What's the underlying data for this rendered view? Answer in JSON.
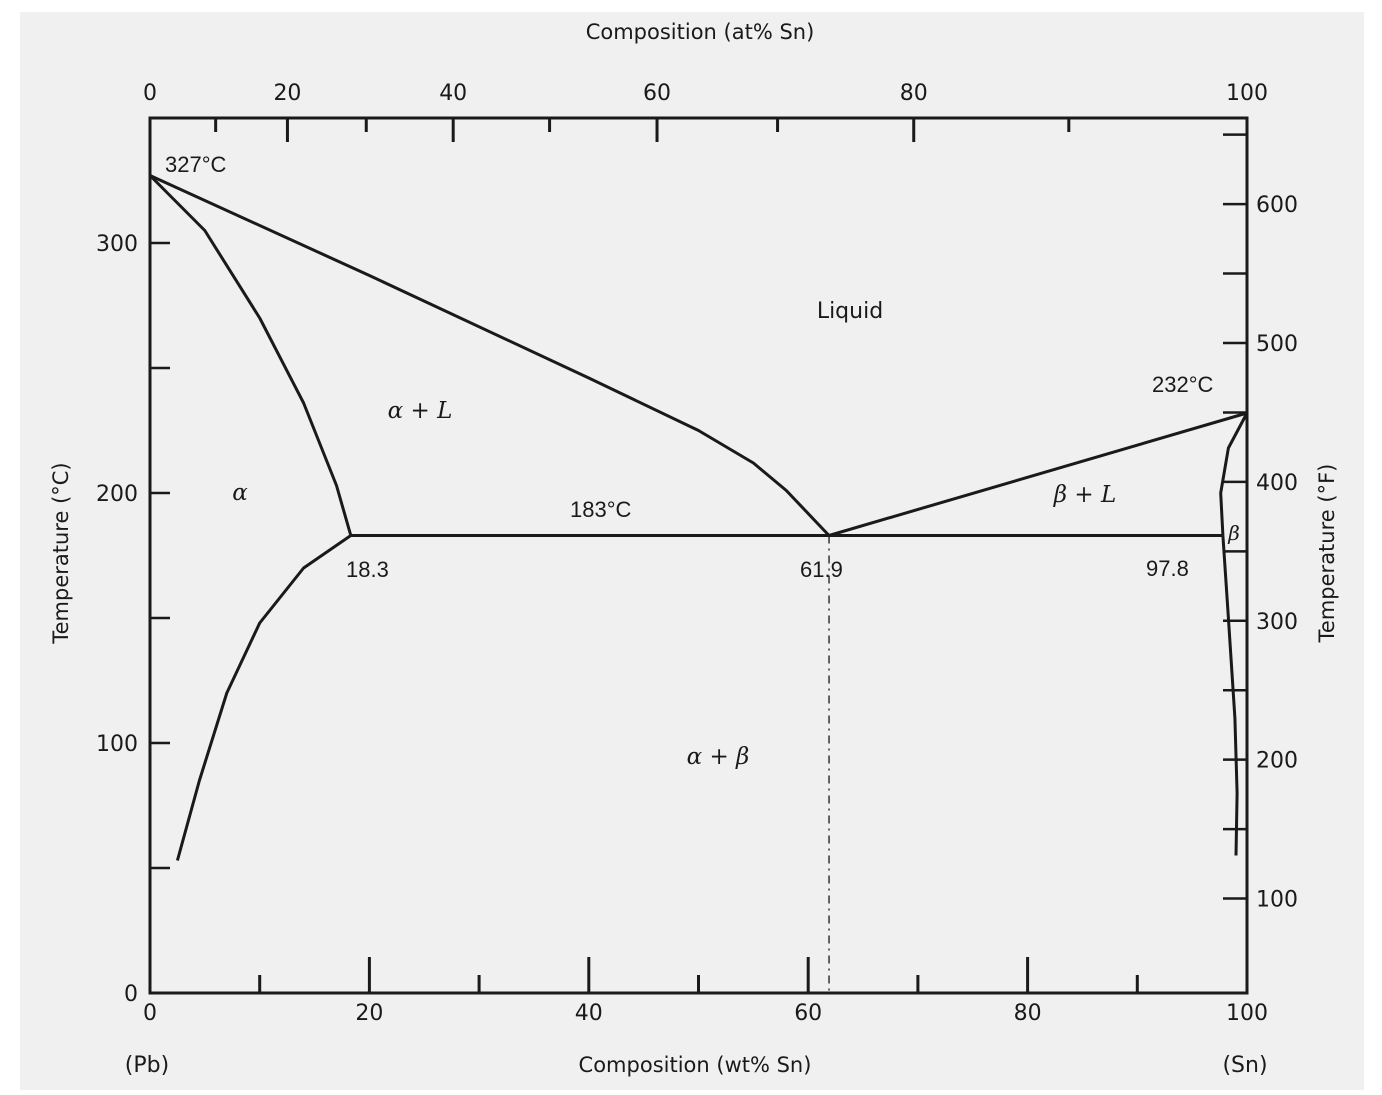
{
  "chart_data": {
    "type": "line",
    "title": "",
    "xlabel_bottom": "Composition (wt% Sn)",
    "xlabel_top": "Composition (at% Sn)",
    "ylabel_left": "Temperature (°C)",
    "ylabel_right": "Temperature (°F)",
    "xlim": [
      0,
      100
    ],
    "ylim": [
      0,
      350
    ],
    "grid": false,
    "bottom_ticks": [
      "0",
      "20",
      "40",
      "60",
      "80",
      "100"
    ],
    "top_ticks": [
      "0",
      "20",
      "40",
      "60",
      "80",
      "100"
    ],
    "left_ticks": [
      "0",
      "100",
      "200",
      "300"
    ],
    "right_ticks": [
      "100",
      "200",
      "300",
      "400",
      "500",
      "600"
    ],
    "endpoint_labels": {
      "left": "(Pb)",
      "right": "(Sn)"
    },
    "regions": {
      "liquid": "Liquid",
      "alpha_liquid": "α + L",
      "alpha": "α",
      "beta_liquid": "β + L",
      "beta": "β",
      "alpha_beta": "α + β"
    },
    "annotations": {
      "pb_melting": "327°C",
      "sn_melting": "232°C",
      "eutectic_temp": "183°C",
      "alpha_max_solubility": "18.3",
      "eutectic_comp": "61.9",
      "beta_max_solubility": "97.8"
    },
    "series": [
      {
        "key": "liquidus_left",
        "points": [
          [
            0,
            327
          ],
          [
            20,
            287
          ],
          [
            40,
            246
          ],
          [
            50,
            225
          ],
          [
            55,
            212
          ],
          [
            58,
            201
          ],
          [
            61.9,
            183
          ]
        ]
      },
      {
        "key": "liquidus_right",
        "points": [
          [
            61.9,
            183
          ],
          [
            100,
            232
          ]
        ]
      },
      {
        "key": "solidus_alpha",
        "points": [
          [
            0,
            327
          ],
          [
            5,
            305
          ],
          [
            10,
            270
          ],
          [
            14,
            236
          ],
          [
            17,
            203
          ],
          [
            18.3,
            183
          ]
        ]
      },
      {
        "key": "solvus_alpha",
        "points": [
          [
            18.3,
            183
          ],
          [
            14,
            170
          ],
          [
            10,
            148
          ],
          [
            7,
            120
          ],
          [
            4.5,
            85
          ],
          [
            2.5,
            53
          ]
        ]
      },
      {
        "key": "solidus_beta",
        "points": [
          [
            97.8,
            183
          ],
          [
            97.6,
            200
          ],
          [
            98.3,
            218
          ],
          [
            100,
            232
          ]
        ]
      },
      {
        "key": "solvus_beta",
        "points": [
          [
            97.8,
            183
          ],
          [
            98.3,
            150
          ],
          [
            98.9,
            110
          ],
          [
            99.1,
            80
          ],
          [
            99,
            55
          ]
        ]
      },
      {
        "key": "eutectic_isotherm",
        "points": [
          [
            18.3,
            183
          ],
          [
            97.8,
            183
          ]
        ]
      }
    ]
  }
}
